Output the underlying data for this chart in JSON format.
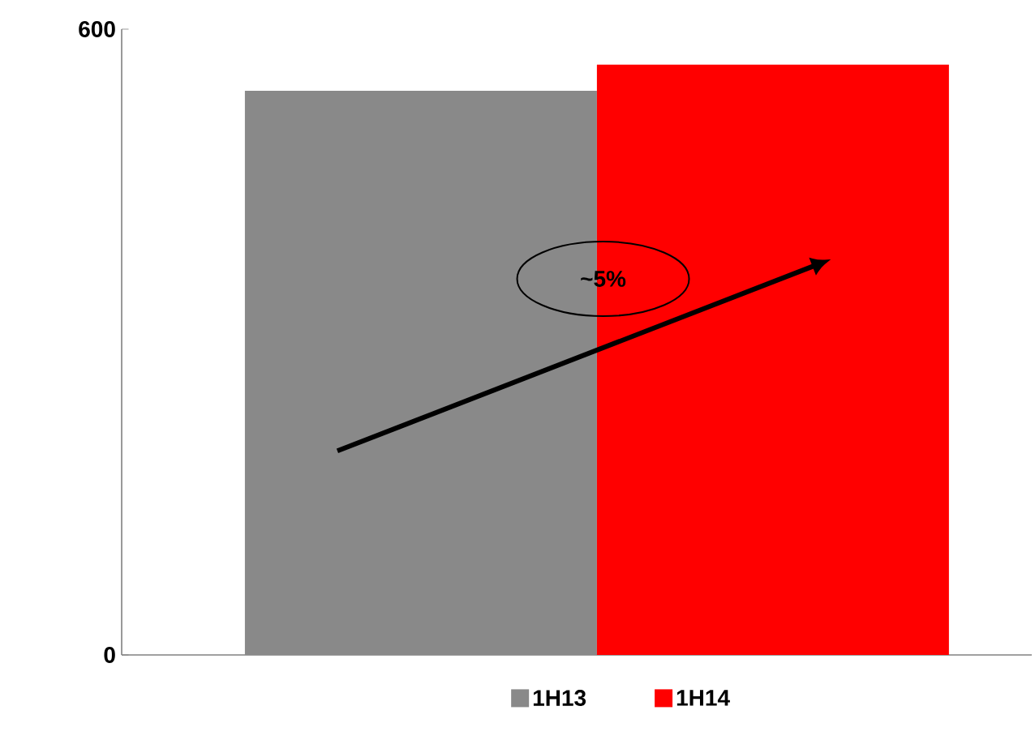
{
  "chart_data": {
    "type": "bar",
    "categories": [
      null
    ],
    "series": [
      {
        "name": "1H13",
        "color": "#898989",
        "values": [
          541
        ]
      },
      {
        "name": "1H14",
        "color": "#ff0000",
        "values": [
          566
        ]
      }
    ],
    "ylim": [
      0,
      600
    ],
    "yticks": [
      0,
      600
    ],
    "legend": "bottom",
    "annotations": [
      "~5%"
    ]
  }
}
